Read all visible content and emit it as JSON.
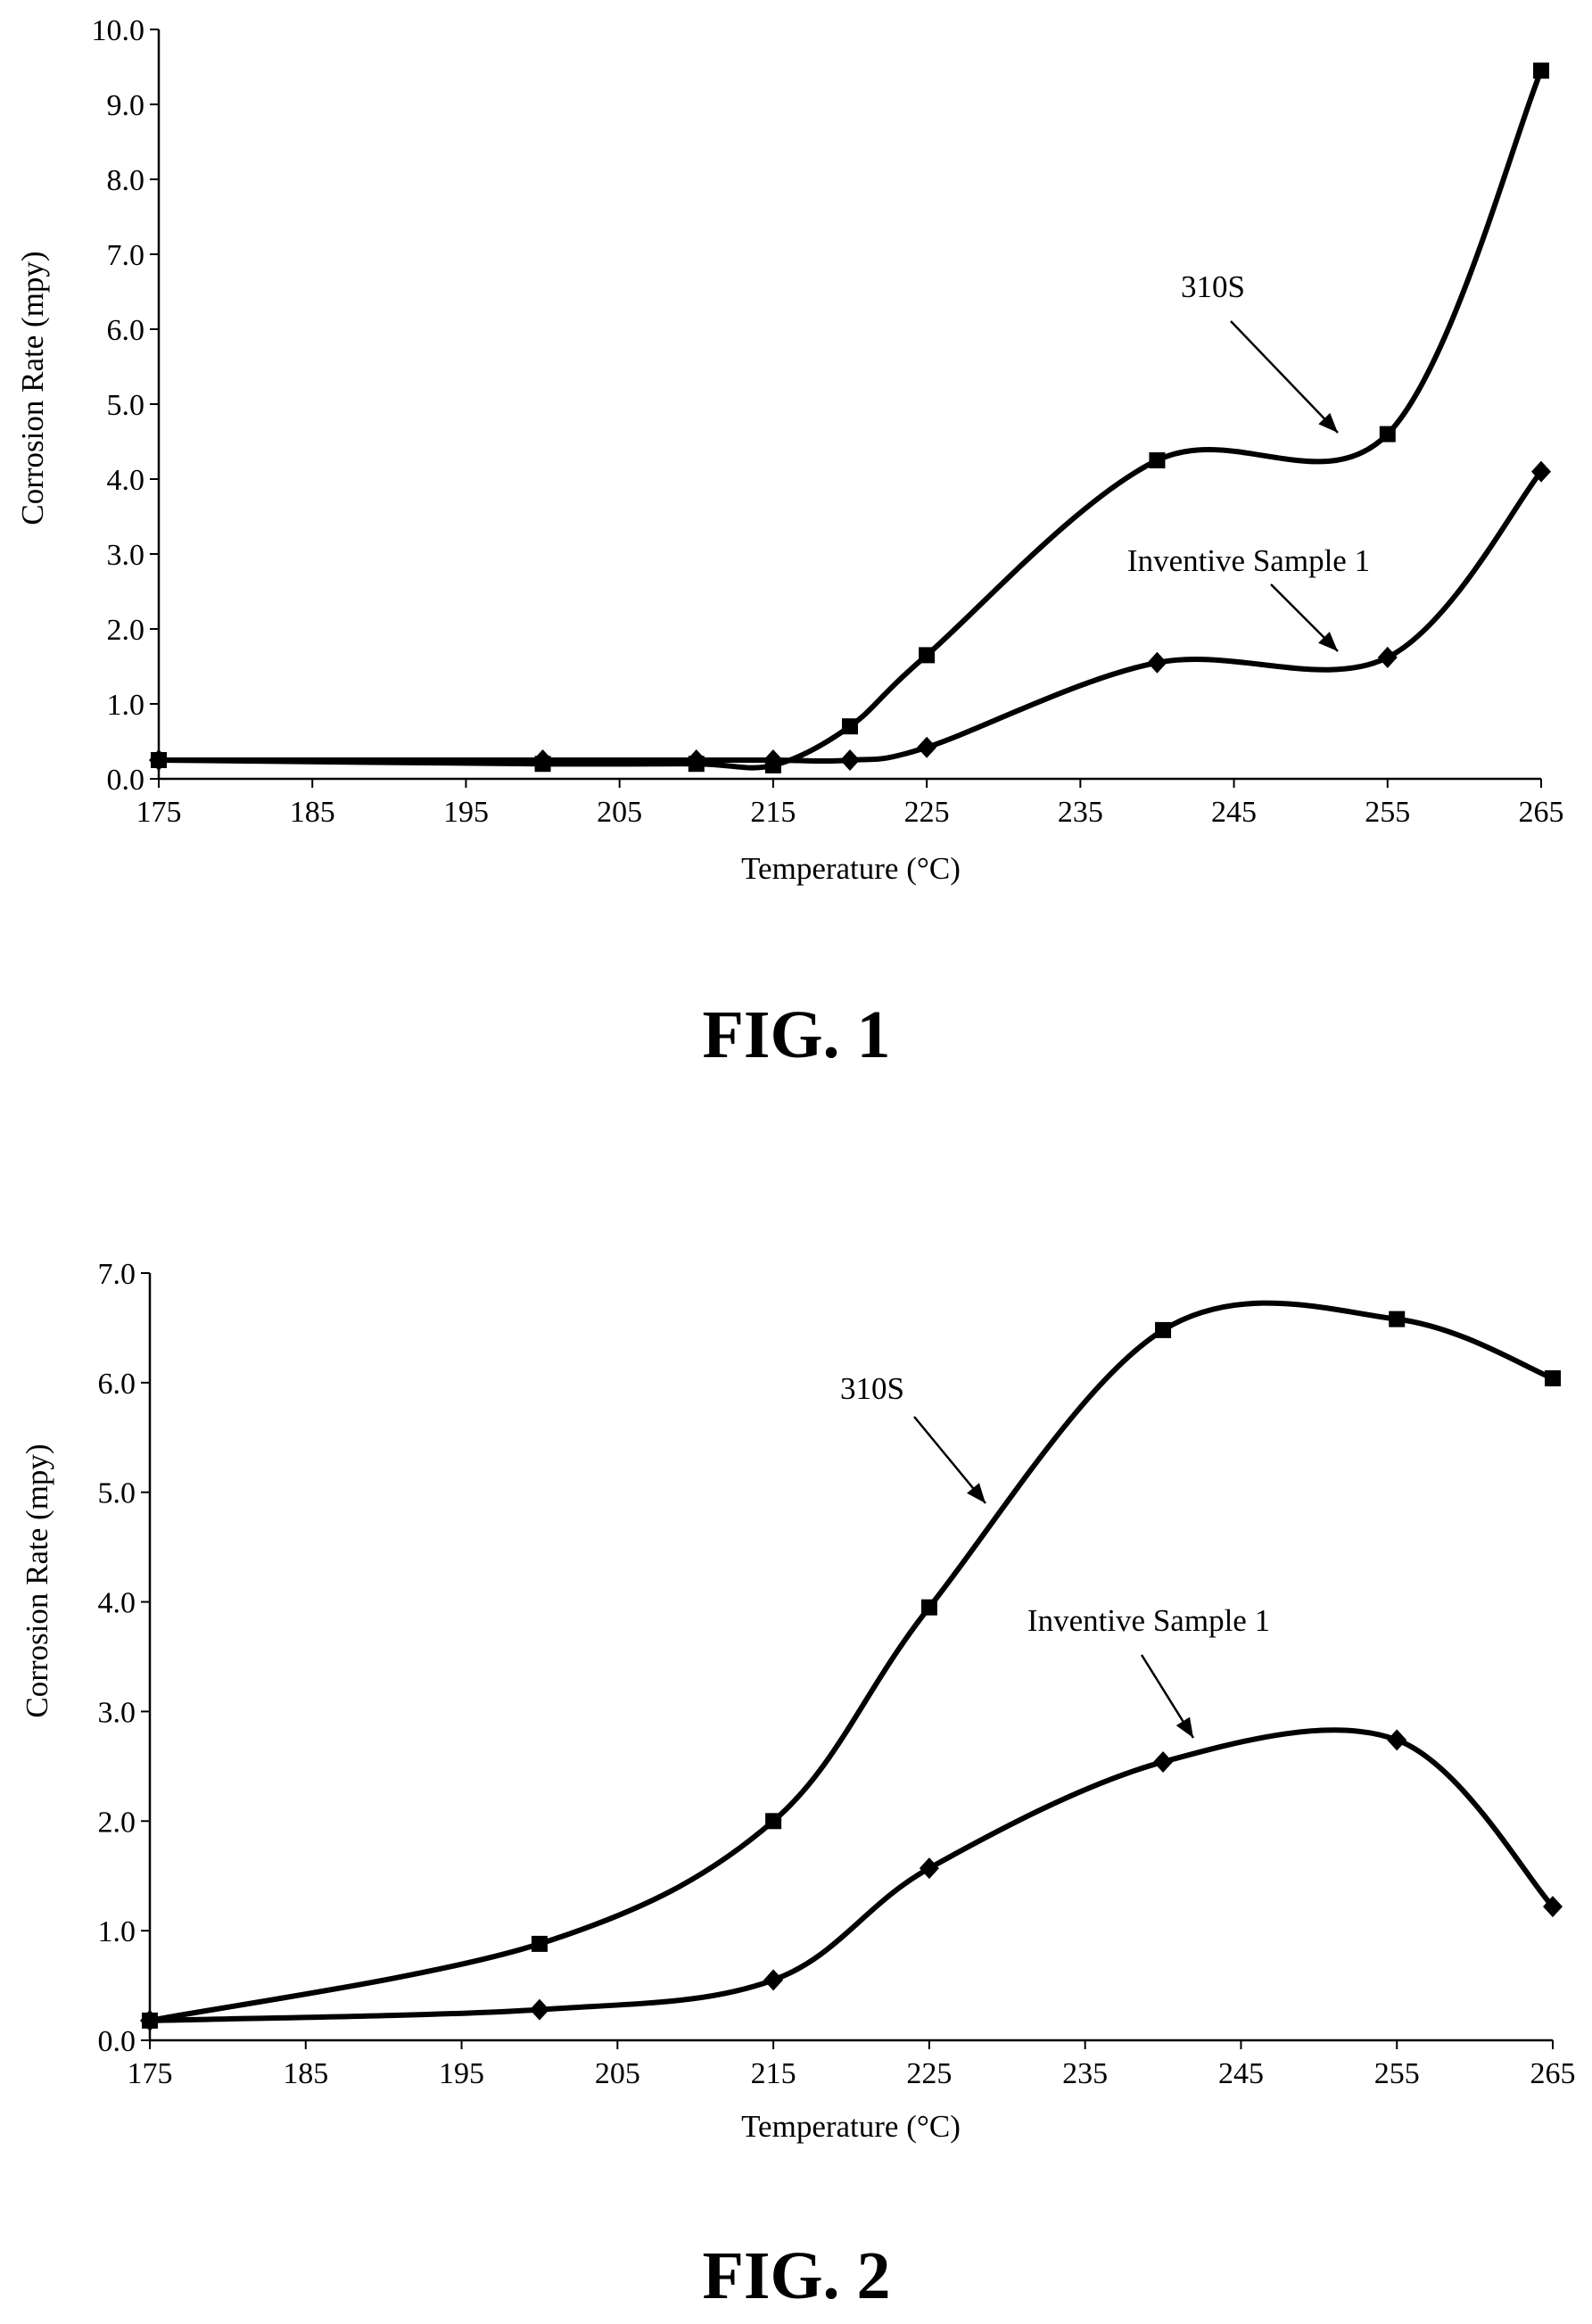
{
  "figures": [
    {
      "caption": "FIG. 1",
      "chart_data": {
        "type": "line",
        "title": "",
        "xlabel": "Temperature  (°C)",
        "ylabel": "Corrosion Rate (mpy)",
        "xlim": [
          175,
          265
        ],
        "ylim": [
          0,
          10
        ],
        "x_ticks": [
          "175",
          "185",
          "195",
          "205",
          "215",
          "225",
          "235",
          "245",
          "255",
          "265"
        ],
        "y_ticks": [
          "0.0",
          "1.0",
          "2.0",
          "3.0",
          "4.0",
          "5.0",
          "6.0",
          "7.0",
          "8.0",
          "9.0",
          "10.0"
        ],
        "grid": false,
        "legend": "none (series identified by callout labels with arrows)",
        "series": [
          {
            "name": "310S",
            "marker": "square",
            "x": [
              175,
              200,
              210,
              215,
              220,
              225,
              240,
              255,
              265
            ],
            "y": [
              0.25,
              0.2,
              0.2,
              0.18,
              0.7,
              1.65,
              4.25,
              4.6,
              9.45
            ]
          },
          {
            "name": "Inventive  Sample  1",
            "marker": "diamond",
            "x": [
              175,
              200,
              210,
              215,
              220,
              225,
              240,
              255,
              265
            ],
            "y": [
              0.25,
              0.25,
              0.25,
              0.25,
              0.25,
              0.42,
              1.55,
              1.62,
              4.1
            ]
          }
        ]
      }
    },
    {
      "caption": "FIG. 2",
      "chart_data": {
        "type": "line",
        "title": "",
        "xlabel": "Temperature  (°C)",
        "ylabel": "Corrosion Rate (mpy)",
        "xlim": [
          175,
          265
        ],
        "ylim": [
          0,
          7
        ],
        "x_ticks": [
          "175",
          "185",
          "195",
          "205",
          "215",
          "225",
          "235",
          "245",
          "255",
          "265"
        ],
        "y_ticks": [
          "0.0",
          "1.0",
          "2.0",
          "3.0",
          "4.0",
          "5.0",
          "6.0",
          "7.0"
        ],
        "grid": false,
        "legend": "none (series identified by callout labels with arrows)",
        "series": [
          {
            "name": "310S",
            "marker": "square",
            "x": [
              175,
              200,
              215,
              225,
              240,
              255,
              265
            ],
            "y": [
              0.18,
              0.88,
              2.0,
              3.95,
              6.48,
              6.58,
              6.04
            ]
          },
          {
            "name": "Inventive  Sample  1",
            "marker": "diamond",
            "x": [
              175,
              200,
              215,
              225,
              240,
              255,
              265
            ],
            "y": [
              0.18,
              0.28,
              0.55,
              1.57,
              2.54,
              2.74,
              1.22
            ]
          }
        ]
      }
    }
  ]
}
